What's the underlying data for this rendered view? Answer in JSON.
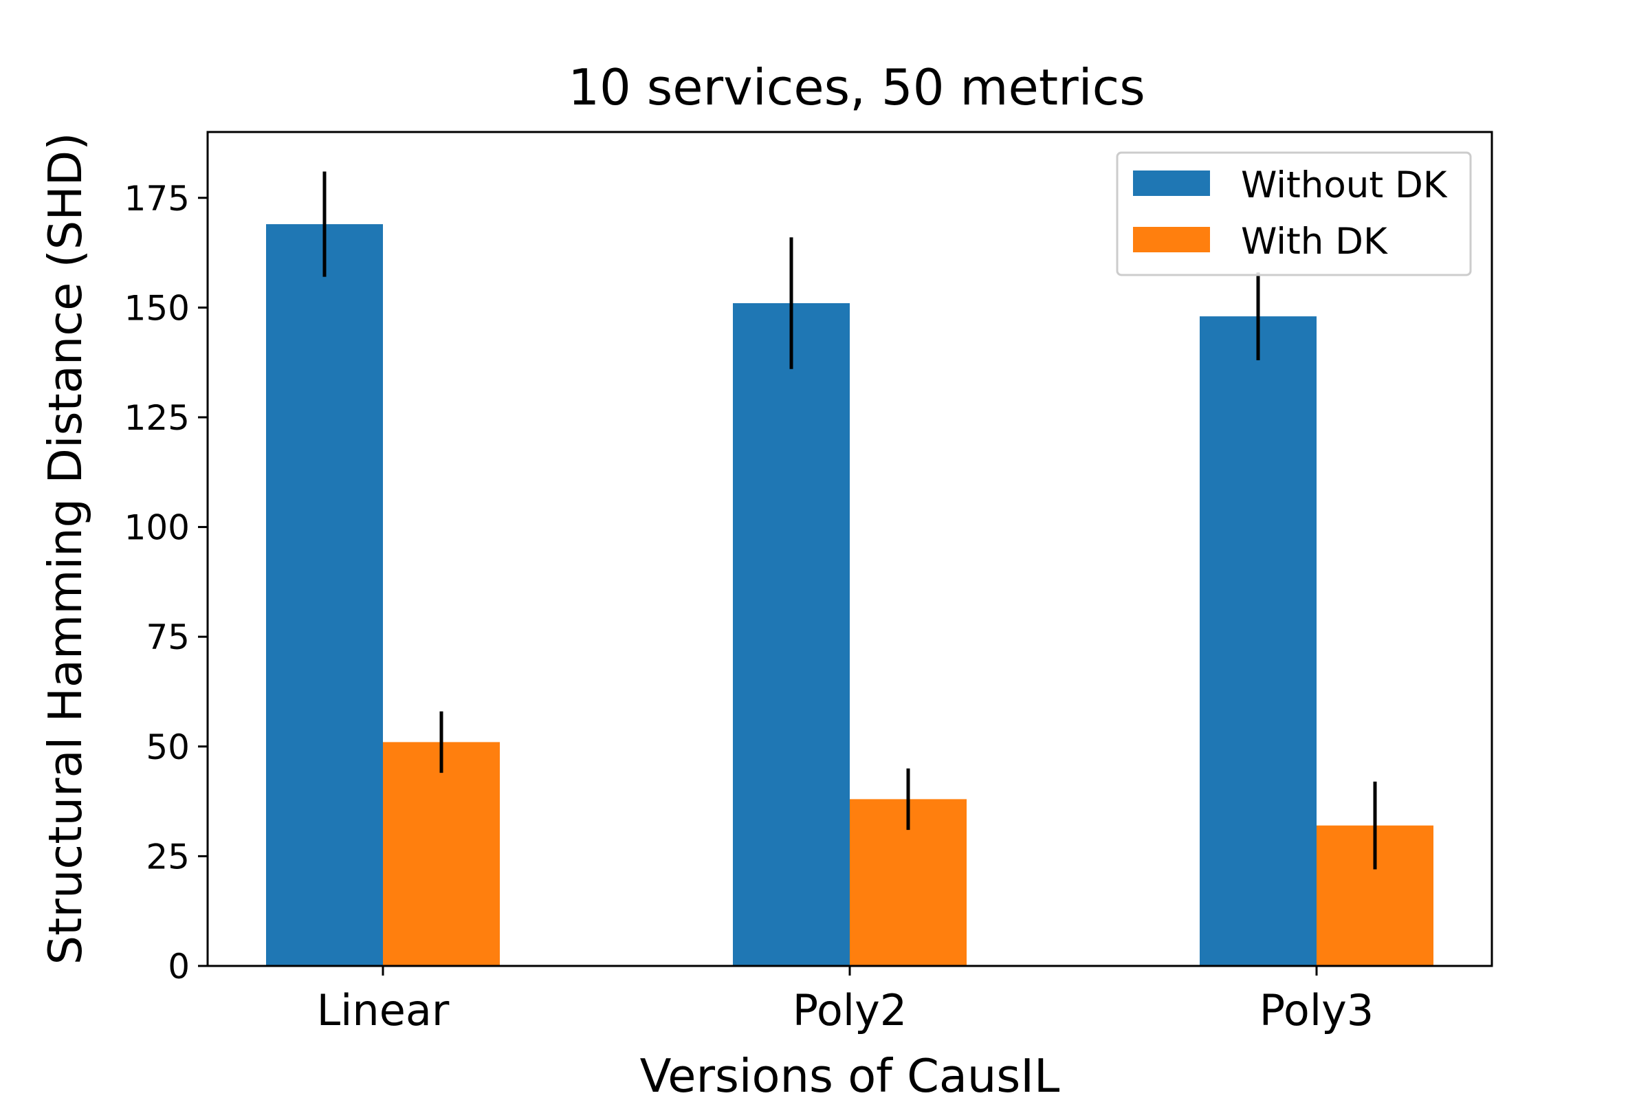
{
  "chart_data": {
    "type": "bar",
    "title": "10 services, 50 metrics",
    "xlabel": "Versions of CausIL",
    "ylabel": "Structural Hamming Distance (SHD)",
    "categories": [
      "Linear",
      "Poly2",
      "Poly3"
    ],
    "series": [
      {
        "name": "Without DK",
        "color": "#1f77b4",
        "values": [
          169,
          151,
          148
        ],
        "errors": [
          12,
          15,
          10
        ]
      },
      {
        "name": "With DK",
        "color": "#ff7f0e",
        "values": [
          51,
          38,
          32
        ],
        "errors": [
          7,
          7,
          10
        ]
      }
    ],
    "ylim": [
      0,
      190
    ],
    "yticks": [
      0,
      25,
      50,
      75,
      100,
      125,
      150,
      175
    ],
    "ytick_labels": [
      "0",
      "25",
      "50",
      "75",
      "100",
      "125",
      "150",
      "175"
    ],
    "grid": false,
    "legend_position": "top-right"
  }
}
